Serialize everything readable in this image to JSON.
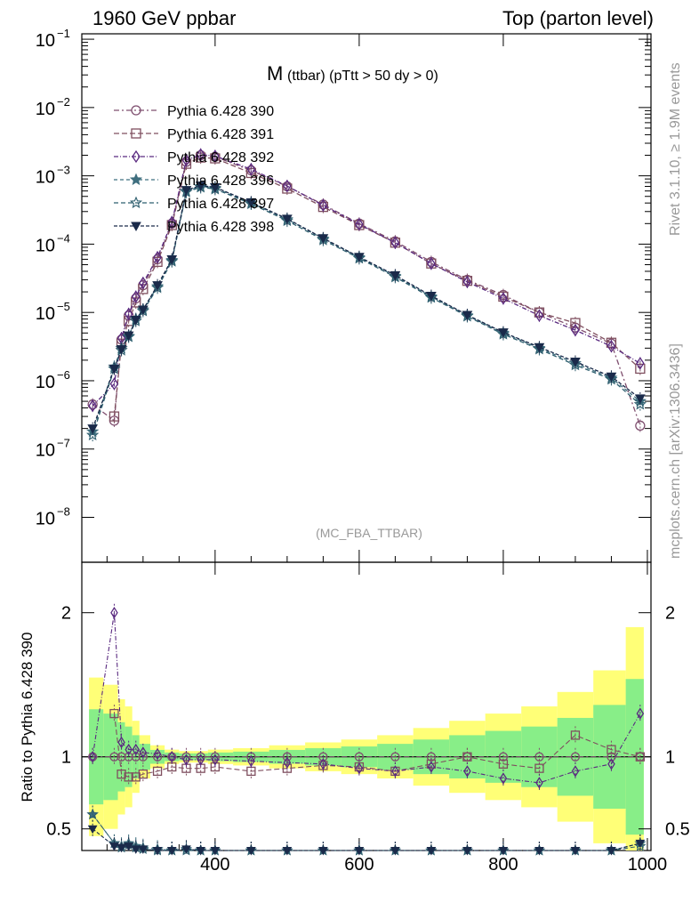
{
  "header": {
    "left": "1960 GeV ppbar",
    "right": "Top (parton level)"
  },
  "side": {
    "rivet": "Rivet 3.1.10, ≥ 1.9M events",
    "mcplots": "mcplots.cern.ch [arXiv:1306.3436]"
  },
  "analysis_tag": "(MC_FBA_TTBAR)",
  "chart_data": {
    "type": "line",
    "title_main": "M",
    "title_sub": "(ttbar) (pTtt > 50 dy > 0)",
    "xlabel": "",
    "ylabel": "",
    "ratio_ylabel": "Ratio to Pythia 6.428 390",
    "xlim": [
      215,
      1005
    ],
    "ylim": [
      2.2e-09,
      0.12
    ],
    "ylog": true,
    "ratio_ylim": [
      0.35,
      2.35
    ],
    "x_ticks": [
      400,
      600,
      800,
      1000
    ],
    "y_ticks": [
      {
        "v": 1e-08,
        "label": "10",
        "exp": "−8"
      },
      {
        "v": 1e-07,
        "label": "10",
        "exp": "−7"
      },
      {
        "v": 1e-06,
        "label": "10",
        "exp": "−6"
      },
      {
        "v": 1e-05,
        "label": "10",
        "exp": "−5"
      },
      {
        "v": 0.0001,
        "label": "10",
        "exp": "−4"
      },
      {
        "v": 0.001,
        "label": "10",
        "exp": "−3"
      },
      {
        "v": 0.01,
        "label": "10",
        "exp": "−2"
      },
      {
        "v": 0.1,
        "label": "10",
        "exp": "−1"
      }
    ],
    "ratio_ticks": [
      {
        "v": 0.5,
        "label": "0.5"
      },
      {
        "v": 1,
        "label": "1"
      },
      {
        "v": 2,
        "label": "2"
      }
    ],
    "legend_position": "top-left",
    "series": [
      {
        "name": "Pythia 6.428 390",
        "color": "#7f4f6f",
        "marker": "circle",
        "dash": "6,3,2,3",
        "x": [
          230,
          260,
          270,
          280,
          290,
          300,
          320,
          340,
          360,
          380,
          400,
          450,
          500,
          550,
          600,
          650,
          700,
          750,
          800,
          850,
          900,
          950,
          990
        ],
        "y": [
          4.5e-07,
          2.6e-07,
          4e-06,
          9e-06,
          1.6e-05,
          2.5e-05,
          6e-05,
          0.0002,
          0.0016,
          0.002,
          0.0019,
          0.0012,
          0.0007,
          0.00038,
          0.0002,
          0.00011,
          5.5e-05,
          3e-05,
          1.8e-05,
          1e-05,
          6e-06,
          3.5e-06,
          2.2e-07
        ],
        "ratio": [
          1,
          1,
          1,
          1,
          1,
          1,
          1,
          1,
          1,
          1,
          1,
          1,
          1,
          1,
          1,
          1,
          1,
          1,
          1,
          1,
          1,
          1,
          1
        ],
        "band": [
          0.55,
          0.5,
          0.4,
          0.35,
          0.25,
          0.15,
          0.08,
          0.05,
          0.04,
          0.04,
          0.05,
          0.06,
          0.08,
          0.1,
          0.12,
          0.15,
          0.2,
          0.25,
          0.3,
          0.35,
          0.45,
          0.6,
          0.9
        ]
      },
      {
        "name": "Pythia 6.428 391",
        "color": "#7f4f5f",
        "marker": "square",
        "dash": "6,3",
        "x": [
          260,
          270,
          280,
          290,
          300,
          320,
          340,
          360,
          380,
          400,
          450,
          500,
          550,
          600,
          650,
          700,
          750,
          800,
          850,
          900,
          950,
          990
        ],
        "y": [
          3e-07,
          3.5e-06,
          7.5e-06,
          1.4e-05,
          2.2e-05,
          5.5e-05,
          0.00019,
          0.0015,
          0.00185,
          0.0018,
          0.0011,
          0.00065,
          0.00035,
          0.00019,
          0.000105,
          5.2e-05,
          2.9e-05,
          1.7e-05,
          1e-05,
          7e-06,
          3.6e-06,
          1.5e-06
        ],
        "ratio": [
          1.3,
          0.88,
          0.86,
          0.86,
          0.88,
          0.9,
          0.93,
          0.92,
          0.92,
          0.93,
          0.9,
          0.92,
          0.94,
          0.93,
          0.9,
          0.95,
          1.0,
          0.95,
          0.92,
          1.15,
          1.05,
          1.0
        ]
      },
      {
        "name": "Pythia 6.428 392",
        "color": "#5a2a80",
        "marker": "diamond",
        "dash": "5,2,1,2",
        "x": [
          230,
          260,
          270,
          280,
          290,
          300,
          320,
          340,
          360,
          380,
          400,
          450,
          500,
          550,
          600,
          650,
          700,
          750,
          800,
          850,
          900,
          950,
          990
        ],
        "y": [
          4.3e-07,
          9e-07,
          4.2e-06,
          9.5e-06,
          1.7e-05,
          2.7e-05,
          6.4e-05,
          0.00021,
          0.0017,
          0.00205,
          0.00195,
          0.00125,
          0.00071,
          0.00037,
          0.000195,
          0.000105,
          5.2e-05,
          2.8e-05,
          1.6e-05,
          9e-06,
          5.5e-06,
          3.2e-06,
          1.8e-06
        ],
        "ratio": [
          1,
          2,
          1.1,
          1.05,
          1.05,
          1.03,
          1.02,
          1.0,
          0.98,
          0.98,
          0.98,
          0.97,
          0.96,
          0.95,
          0.92,
          0.9,
          0.93,
          0.9,
          0.85,
          0.82,
          0.9,
          0.95,
          1.3
        ]
      },
      {
        "name": "Pythia 6.428 396",
        "color": "#3f6f7f",
        "marker": "star",
        "dash": "4,3",
        "x": [
          230,
          260,
          270,
          280,
          290,
          300,
          320,
          340,
          360,
          380,
          400,
          450,
          500,
          550,
          600,
          650,
          700,
          750,
          800,
          850,
          900,
          950,
          990
        ],
        "y": [
          1.8e-07,
          1.6e-06,
          3e-06,
          4.5e-06,
          8e-06,
          1.1e-05,
          2.4e-05,
          5.8e-05,
          0.0006,
          0.0007,
          0.00066,
          0.0004,
          0.00023,
          0.00012,
          6.4e-05,
          3.4e-05,
          1.7e-05,
          9e-06,
          5e-06,
          3e-06,
          1.8e-06,
          1.1e-06,
          5e-07
        ],
        "ratio": [
          0.6,
          0.4,
          0.38,
          0.4,
          0.38,
          0.37,
          0.36,
          0.34,
          0.36,
          0.35,
          0.35,
          0.34,
          0.33,
          0.32,
          0.32,
          0.31,
          0.31,
          0.3,
          0.28,
          0.3,
          0.3,
          0.31,
          0.4
        ]
      },
      {
        "name": "Pythia 6.428 397",
        "color": "#2f5f6f",
        "marker": "star-open",
        "dash": "5,3",
        "x": [
          230,
          260,
          270,
          280,
          290,
          300,
          320,
          340,
          360,
          380,
          400,
          450,
          500,
          550,
          600,
          650,
          700,
          750,
          800,
          850,
          900,
          950,
          990
        ],
        "y": [
          1.6e-07,
          1.5e-06,
          2.8e-06,
          4.4e-06,
          7.5e-06,
          1.05e-05,
          2.3e-05,
          5.6e-05,
          0.00058,
          0.00068,
          0.00064,
          0.00039,
          0.00022,
          0.000115,
          6.2e-05,
          3.3e-05,
          1.65e-05,
          8.8e-06,
          4.8e-06,
          2.9e-06,
          1.7e-06,
          1.05e-06,
          4.5e-07
        ],
        "ratio": [
          0.6,
          0.4,
          0.37,
          0.39,
          0.37,
          0.36,
          0.35,
          0.33,
          0.35,
          0.34,
          0.34,
          0.33,
          0.32,
          0.31,
          0.31,
          0.3,
          0.3,
          0.29,
          0.27,
          0.29,
          0.29,
          0.3,
          0.38
        ]
      },
      {
        "name": "Pythia 6.428 398",
        "color": "#1a2a4a",
        "marker": "triangle-down",
        "dash": "4,2",
        "x": [
          230,
          260,
          270,
          280,
          290,
          300,
          320,
          340,
          360,
          380,
          400,
          450,
          500,
          550,
          600,
          650,
          700,
          750,
          800,
          850,
          900,
          950,
          990
        ],
        "y": [
          2e-07,
          1.5e-06,
          2.9e-06,
          4.6e-06,
          7.8e-06,
          1.1e-05,
          2.5e-05,
          6e-05,
          0.00062,
          0.00072,
          0.00068,
          0.00041,
          0.000235,
          0.000122,
          6.5e-05,
          3.5e-05,
          1.75e-05,
          9.2e-06,
          5.1e-06,
          3.1e-06,
          1.9e-06,
          1.15e-06,
          5.5e-07
        ],
        "ratio": [
          0.5,
          0.38,
          0.37,
          0.38,
          0.36,
          0.36,
          0.35,
          0.34,
          0.36,
          0.35,
          0.35,
          0.34,
          0.33,
          0.32,
          0.32,
          0.31,
          0.31,
          0.3,
          0.29,
          0.31,
          0.3,
          0.31,
          0.4
        ]
      }
    ]
  }
}
